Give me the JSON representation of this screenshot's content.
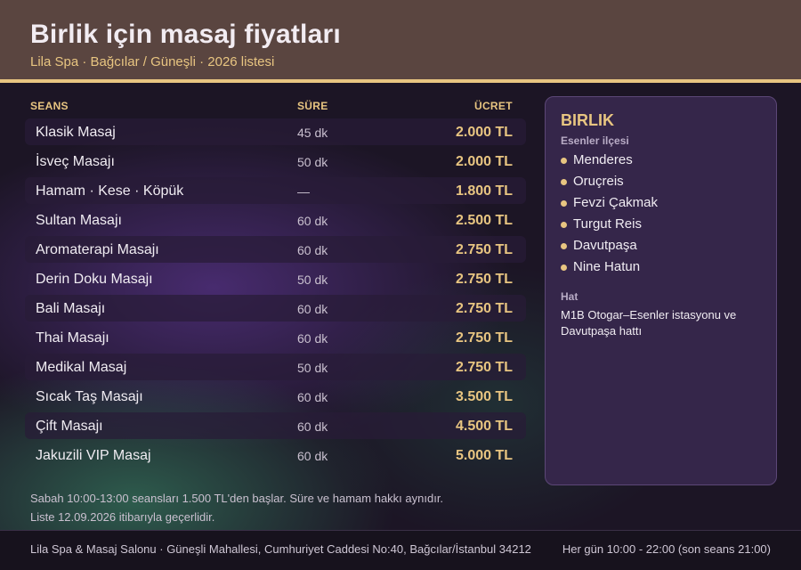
{
  "header": {
    "title": "Birlik için masaj fiyatları",
    "subtitle": "Lila Spa · Bağcılar / Güneşli · 2026 listesi"
  },
  "table": {
    "columns": {
      "service": "SEANS",
      "duration": "SÜRE",
      "price": "ÜCRET"
    },
    "rows": [
      {
        "name": "Klasik Masaj",
        "duration": "45 dk",
        "price": "2.000 TL"
      },
      {
        "name": "İsveç Masajı",
        "duration": "50 dk",
        "price": "2.000 TL"
      },
      {
        "name": "Hamam · Kese · Köpük",
        "duration": "—",
        "price": "1.800 TL"
      },
      {
        "name": "Sultan Masajı",
        "duration": "60 dk",
        "price": "2.500 TL"
      },
      {
        "name": "Aromaterapi Masajı",
        "duration": "60 dk",
        "price": "2.750 TL"
      },
      {
        "name": "Derin Doku Masajı",
        "duration": "50 dk",
        "price": "2.750 TL"
      },
      {
        "name": "Bali Masajı",
        "duration": "60 dk",
        "price": "2.750 TL"
      },
      {
        "name": "Thai Masajı",
        "duration": "60 dk",
        "price": "2.750 TL"
      },
      {
        "name": "Medikal Masaj",
        "duration": "50 dk",
        "price": "2.750 TL"
      },
      {
        "name": "Sıcak Taş Masajı",
        "duration": "60 dk",
        "price": "3.500 TL"
      },
      {
        "name": "Çift Masajı",
        "duration": "60 dk",
        "price": "4.500 TL"
      },
      {
        "name": "Jakuzili VIP Masaj",
        "duration": "60 dk",
        "price": "5.000 TL"
      }
    ]
  },
  "panel": {
    "title": "BIRLIK",
    "subtitle": "Esenler ilçesi",
    "neighborhoods": [
      "Menderes",
      "Oruçreis",
      "Fevzi Çakmak",
      "Turgut Reis",
      "Davutpaşa",
      "Nine Hatun"
    ],
    "line_label": "Hat",
    "line_text": "M1B Otogar–Esenler istasyonu ve Davutpaşa hattı"
  },
  "notes": [
    "Sabah 10:00-13:00 seansları 1.500 TL'den başlar. Süre ve hamam hakkı aynıdır.",
    "Liste 12.09.2026 itibarıyla geçerlidir."
  ],
  "footer": {
    "address": "Lila Spa & Masaj Salonu · Güneşli Mahallesi, Cumhuriyet Caddesi No:40, Bağcılar/İstanbul 34212",
    "hours": "Her gün 10:00 - 22:00 (son seans 21:00)"
  },
  "colors": {
    "accent": "#e8c581",
    "header_bg": "#5a4540",
    "panel_bg": "#35264a",
    "page_bg": "#1d1526"
  }
}
